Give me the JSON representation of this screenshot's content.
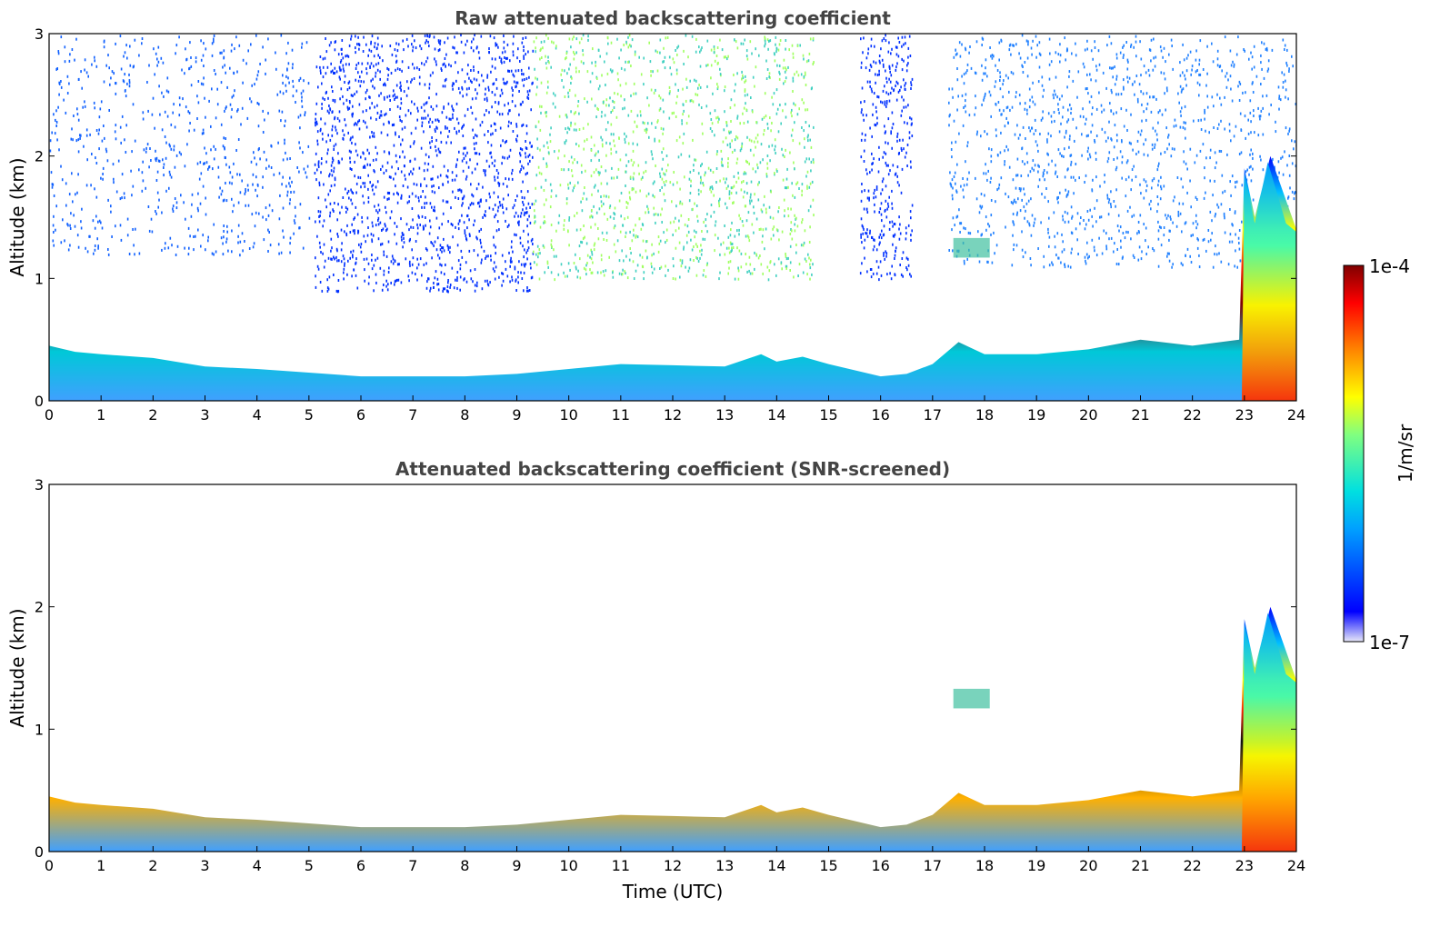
{
  "chart_data": [
    {
      "type": "heatmap",
      "title": "Raw attenuated backscattering coefficient",
      "xlabel": "",
      "ylabel": "Altitude (km)",
      "xlim": [
        0,
        24
      ],
      "ylim": [
        0,
        3
      ],
      "xticks": [
        "0",
        "1",
        "2",
        "3",
        "4",
        "5",
        "6",
        "7",
        "8",
        "9",
        "10",
        "11",
        "12",
        "13",
        "14",
        "15",
        "16",
        "17",
        "18",
        "19",
        "20",
        "21",
        "22",
        "23",
        "24"
      ],
      "yticks": [
        "0",
        "1",
        "2",
        "3"
      ],
      "boundary_layer_top_km": [
        [
          0,
          0.45
        ],
        [
          0.5,
          0.4
        ],
        [
          1,
          0.38
        ],
        [
          2,
          0.35
        ],
        [
          3,
          0.28
        ],
        [
          4,
          0.26
        ],
        [
          5,
          0.23
        ],
        [
          6,
          0.2
        ],
        [
          7,
          0.2
        ],
        [
          8,
          0.2
        ],
        [
          9,
          0.22
        ],
        [
          10,
          0.26
        ],
        [
          11,
          0.3
        ],
        [
          12,
          0.29
        ],
        [
          13,
          0.28
        ],
        [
          13.7,
          0.38
        ],
        [
          14,
          0.32
        ],
        [
          14.5,
          0.36
        ],
        [
          15,
          0.3
        ],
        [
          16,
          0.2
        ],
        [
          16.5,
          0.22
        ],
        [
          17,
          0.3
        ],
        [
          17.5,
          0.48
        ],
        [
          18,
          0.38
        ],
        [
          19,
          0.38
        ],
        [
          20,
          0.42
        ],
        [
          21,
          0.5
        ],
        [
          22,
          0.45
        ],
        [
          22.9,
          0.5
        ],
        [
          23,
          1.9
        ],
        [
          23.2,
          1.5
        ],
        [
          23.5,
          2.0
        ],
        [
          24,
          1.4
        ]
      ],
      "isolated_layer": {
        "x": [
          17.4,
          18.1
        ],
        "altitude_km": 1.25
      },
      "grid": false
    },
    {
      "type": "heatmap",
      "title": "Attenuated backscattering coefficient (SNR-screened)",
      "xlabel": "Time (UTC)",
      "ylabel": "Altitude (km)",
      "xlim": [
        0,
        24
      ],
      "ylim": [
        0,
        3
      ],
      "xticks": [
        "0",
        "1",
        "2",
        "3",
        "4",
        "5",
        "6",
        "7",
        "8",
        "9",
        "10",
        "11",
        "12",
        "13",
        "14",
        "15",
        "16",
        "17",
        "18",
        "19",
        "20",
        "21",
        "22",
        "23",
        "24"
      ],
      "yticks": [
        "0",
        "1",
        "2",
        "3"
      ],
      "boundary_layer_top_km": [
        [
          0,
          0.45
        ],
        [
          0.5,
          0.4
        ],
        [
          1,
          0.38
        ],
        [
          2,
          0.35
        ],
        [
          3,
          0.28
        ],
        [
          4,
          0.26
        ],
        [
          5,
          0.23
        ],
        [
          6,
          0.2
        ],
        [
          7,
          0.2
        ],
        [
          8,
          0.2
        ],
        [
          9,
          0.22
        ],
        [
          10,
          0.26
        ],
        [
          11,
          0.3
        ],
        [
          12,
          0.29
        ],
        [
          13,
          0.28
        ],
        [
          13.7,
          0.38
        ],
        [
          14,
          0.32
        ],
        [
          14.5,
          0.36
        ],
        [
          15,
          0.3
        ],
        [
          16,
          0.2
        ],
        [
          16.5,
          0.22
        ],
        [
          17,
          0.3
        ],
        [
          17.5,
          0.48
        ],
        [
          18,
          0.38
        ],
        [
          19,
          0.38
        ],
        [
          20,
          0.42
        ],
        [
          21,
          0.5
        ],
        [
          22,
          0.45
        ],
        [
          22.9,
          0.5
        ],
        [
          23,
          1.9
        ],
        [
          23.2,
          1.5
        ],
        [
          23.5,
          2.0
        ],
        [
          24,
          1.4
        ]
      ],
      "isolated_layer": {
        "x": [
          17.4,
          18.1
        ],
        "altitude_km": 1.25
      },
      "grid": false
    }
  ],
  "colorbar": {
    "label": "1/m/sr",
    "max_label": "1e-4",
    "min_label": "1e-7",
    "colormap": "jet",
    "colors": [
      "#e8e8f8",
      "#0000ff",
      "#00a0ff",
      "#00e0e0",
      "#80ff80",
      "#ffff00",
      "#ff8000",
      "#ff0000",
      "#800000"
    ]
  }
}
